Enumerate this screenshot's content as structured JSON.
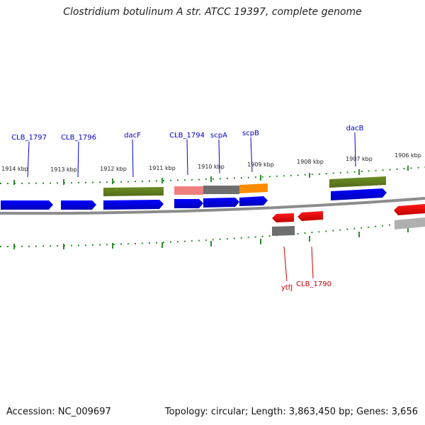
{
  "title": "Clostridium botulinum A str. ATCC 19397, complete genome",
  "footer": {
    "accession": "Accession: NC_009697",
    "summary": "Topology: circular; Length: 3,863,450 bp; Genes: 3,656"
  },
  "colors": {
    "forward_gene": "#0000ee",
    "reverse_gene": "#ee0000",
    "backbone": "#888888",
    "ruler": "#2e8b2e",
    "green_feature": "#6b8e23",
    "salmon_feature": "#f08080",
    "gray_feature": "#707070",
    "orange_feature": "#ff8c00",
    "light_gray_feature": "#b0b0b0"
  },
  "ruler_labels": [
    "1914 kbp",
    "1913 kbp",
    "1912 kbp",
    "1911 kbp",
    "1910 kbp",
    "1909 kbp",
    "1908 kbp",
    "1907 kbp",
    "1906 kbp"
  ],
  "forward_gene_labels": [
    "CLB_1797",
    "CLB_1796",
    "dacF",
    "CLB_1794",
    "scpA",
    "scpB",
    "dacB"
  ],
  "reverse_gene_labels": [
    "ytfJ",
    "CLB_1790"
  ]
}
